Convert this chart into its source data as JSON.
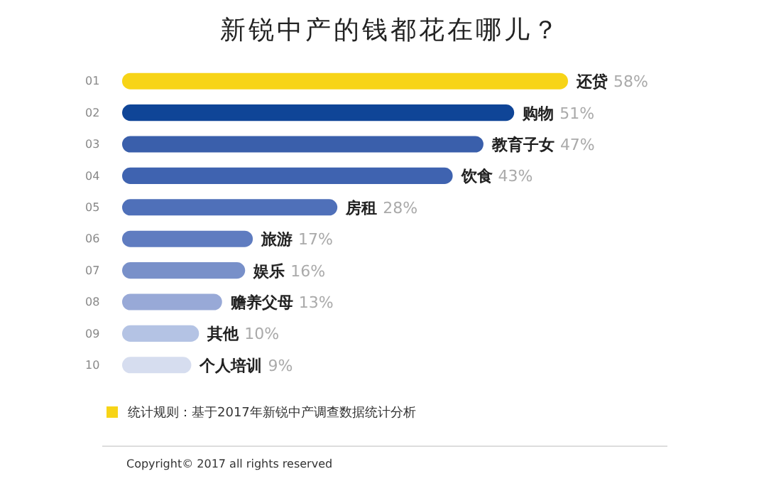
{
  "chart_data": {
    "type": "bar",
    "orientation": "horizontal",
    "title": "新锐中产的钱都花在哪儿？",
    "categories": [
      "01",
      "02",
      "03",
      "04",
      "05",
      "06",
      "07",
      "08",
      "09",
      "10"
    ],
    "values": [
      58,
      51,
      47,
      43,
      28,
      17,
      16,
      13,
      10,
      9
    ],
    "colors": [
      "#f7d417",
      "#0f4597",
      "#3a5fab",
      "#3f63b0",
      "#4f70b9",
      "#5f7cc0",
      "#7890c9",
      "#98a9d7",
      "#b4c3e4",
      "#d6ddef"
    ],
    "value_labels": [
      "还贷 58%",
      "购物 51%",
      "教育子女 47%",
      "饮食 43%",
      "房租 28%",
      "旅游 17%",
      "娱乐 16%",
      "赡养父母 13%",
      "其他 10%",
      "个人培训 9%"
    ],
    "annotations": [
      "统计规则：基于2017年新锐中产调查数据统计分析",
      "Copyright© 2017 all rights reserved"
    ],
    "grid": false
  }
}
